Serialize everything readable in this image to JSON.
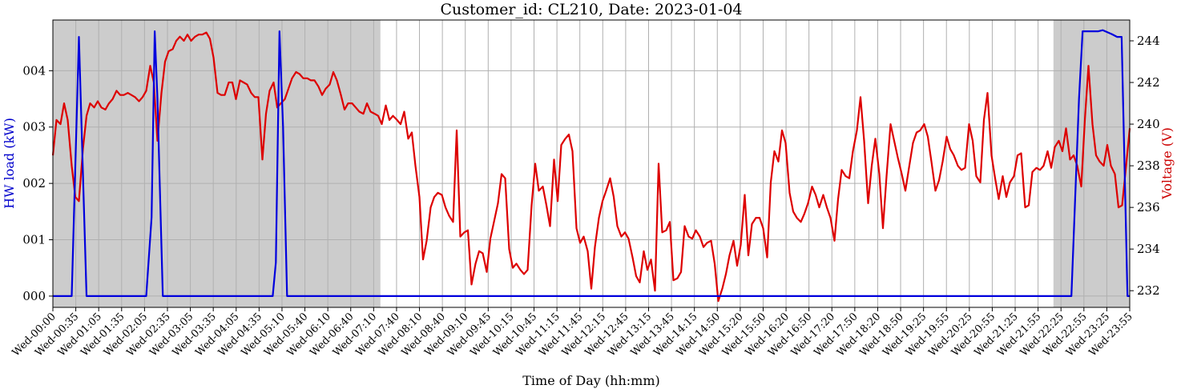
{
  "chart_data": {
    "type": "line",
    "title": "Customer_id: CL210, Date: 2023-01-04",
    "xlabel": "Time of Day (hh:mm)",
    "ylabel_left": "HW load (kW)",
    "ylabel_right": "Voltage (V)",
    "ylim_left": [
      -0.2,
      4.9
    ],
    "ylim_right": [
      231.2,
      245.0
    ],
    "yticks_left": [
      0,
      1,
      2,
      3,
      4
    ],
    "ytick_labels_left": [
      "000",
      "001",
      "002",
      "003",
      "004"
    ],
    "yticks_right": [
      232,
      234,
      236,
      238,
      240,
      242,
      244
    ],
    "x_tick_labels": [
      "Wed-00:00",
      "Wed-00:35",
      "Wed-01:05",
      "Wed-01:35",
      "Wed-02:05",
      "Wed-02:35",
      "Wed-03:05",
      "Wed-03:35",
      "Wed-04:05",
      "Wed-04:35",
      "Wed-05:10",
      "Wed-05:40",
      "Wed-06:10",
      "Wed-06:40",
      "Wed-07:10",
      "Wed-07:40",
      "Wed-08:10",
      "Wed-08:40",
      "Wed-09:10",
      "Wed-09:45",
      "Wed-10:15",
      "Wed-10:45",
      "Wed-11:15",
      "Wed-11:45",
      "Wed-12:15",
      "Wed-12:45",
      "Wed-13:15",
      "Wed-13:45",
      "Wed-14:15",
      "Wed-14:50",
      "Wed-15:20",
      "Wed-15:50",
      "Wed-16:20",
      "Wed-16:50",
      "Wed-17:20",
      "Wed-17:50",
      "Wed-18:20",
      "Wed-18:50",
      "Wed-19:25",
      "Wed-19:55",
      "Wed-20:25",
      "Wed-20:55",
      "Wed-21:25",
      "Wed-21:55",
      "Wed-22:25",
      "Wed-22:55",
      "Wed-23:25",
      "Wed-23:55"
    ],
    "grid": true,
    "shaded_periods_hours": [
      [
        0,
        7.3
      ],
      [
        22.3,
        24.0
      ]
    ],
    "colors": {
      "load": "#0000dd",
      "voltage": "#dd0000",
      "shade": "#cccccc",
      "left_axis_label": "#0000cc",
      "right_axis_label": "#cc0000"
    },
    "load_series": {
      "x_hours": [
        0,
        0.25,
        0.42,
        0.58,
        0.75,
        2.08,
        2.2,
        2.27,
        2.33,
        2.45,
        2.58,
        4.83,
        4.9,
        4.97,
        5.05,
        5.13,
        5.22,
        5.3,
        22.3,
        22.7,
        22.87,
        22.95,
        23.05,
        23.3,
        23.4,
        23.6,
        23.72,
        23.82,
        23.95,
        24.0
      ],
      "values": [
        0,
        0,
        0,
        4.6,
        0,
        0,
        1.4,
        4.7,
        3.5,
        0,
        0,
        0,
        0,
        0.6,
        4.7,
        3.0,
        0,
        0,
        0,
        0,
        3.5,
        4.7,
        4.7,
        4.7,
        4.72,
        4.65,
        4.6,
        4.6,
        0,
        0
      ]
    },
    "voltage_series": {
      "x_hours": [
        0,
        0.08,
        0.17,
        0.25,
        0.33,
        0.42,
        0.5,
        0.58,
        0.67,
        0.75,
        0.83,
        0.92,
        1.0,
        1.08,
        1.17,
        1.25,
        1.33,
        1.42,
        1.5,
        1.58,
        1.67,
        1.75,
        1.83,
        1.92,
        2.0,
        2.08,
        2.17,
        2.25,
        2.33,
        2.42,
        2.5,
        2.58,
        2.67,
        2.75,
        2.83,
        2.92,
        3.0,
        3.08,
        3.17,
        3.25,
        3.33,
        3.42,
        3.5,
        3.58,
        3.67,
        3.75,
        3.83,
        3.92,
        4.0,
        4.08,
        4.17,
        4.25,
        4.33,
        4.42,
        4.5,
        4.58,
        4.67,
        4.75,
        4.83,
        4.92,
        5.0,
        5.08,
        5.17,
        5.25,
        5.33,
        5.42,
        5.5,
        5.58,
        5.67,
        5.75,
        5.83,
        5.92,
        6.0,
        6.08,
        6.17,
        6.25,
        6.33,
        6.42,
        6.5,
        6.58,
        6.67,
        6.75,
        6.83,
        6.92,
        7.0,
        7.08,
        7.17,
        7.25,
        7.33,
        7.42,
        7.5,
        7.58,
        7.67,
        7.75,
        7.83,
        7.92,
        8.0,
        8.08,
        8.17,
        8.25,
        8.33,
        8.42,
        8.5,
        8.58,
        8.67,
        8.75,
        8.83,
        8.92,
        9.0,
        9.08,
        9.17,
        9.25,
        9.33,
        9.42,
        9.5,
        9.58,
        9.67,
        9.75,
        9.83,
        9.92,
        10.0,
        10.08,
        10.17,
        10.25,
        10.33,
        10.42,
        10.5,
        10.58,
        10.67,
        10.75,
        10.83,
        10.92,
        11.0,
        11.08,
        11.17,
        11.25,
        11.33,
        11.42,
        11.5,
        11.58,
        11.67,
        11.75,
        11.83,
        11.92,
        12.0,
        12.08,
        12.17,
        12.25,
        12.33,
        12.42,
        12.5,
        12.58,
        12.67,
        12.75,
        12.83,
        12.92,
        13.0,
        13.08,
        13.17,
        13.25,
        13.33,
        13.42,
        13.5,
        13.58,
        13.67,
        13.75,
        13.83,
        13.92,
        14.0,
        14.08,
        14.17,
        14.25,
        14.33,
        14.42,
        14.5,
        14.58,
        14.67,
        14.75,
        14.83,
        14.92,
        15.0,
        15.08,
        15.17,
        15.25,
        15.33,
        15.42,
        15.5,
        15.58,
        15.67,
        15.75,
        15.83,
        15.92,
        16.0,
        16.08,
        16.17,
        16.25,
        16.33,
        16.42,
        16.5,
        16.58,
        16.67,
        16.75,
        16.83,
        16.92,
        17.0,
        17.08,
        17.17,
        17.25,
        17.33,
        17.42,
        17.5,
        17.58,
        17.67,
        17.75,
        17.83,
        17.92,
        18.0,
        18.08,
        18.17,
        18.25,
        18.33,
        18.42,
        18.5,
        18.58,
        18.67,
        18.75,
        18.83,
        18.92,
        19.0,
        19.08,
        19.17,
        19.25,
        19.33,
        19.42,
        19.5,
        19.58,
        19.67,
        19.75,
        19.83,
        19.92,
        20.0,
        20.08,
        20.17,
        20.25,
        20.33,
        20.42,
        20.5,
        20.58,
        20.67,
        20.75,
        20.83,
        20.92,
        21.0,
        21.08,
        21.17,
        21.25,
        21.33,
        21.42,
        21.5,
        21.58,
        21.67,
        21.75,
        21.83,
        21.92,
        22.0,
        22.08,
        22.17,
        22.25,
        22.33,
        22.42,
        22.5,
        22.58,
        22.67,
        22.75,
        22.83,
        22.92,
        23.0,
        23.08,
        23.17,
        23.25,
        23.33,
        23.42,
        23.5,
        23.58,
        23.67,
        23.75,
        23.83,
        23.92,
        24.0
      ],
      "values": [
        238.5,
        240.2,
        240.0,
        241.0,
        240.2,
        238.0,
        236.5,
        236.3,
        238.8,
        240.4,
        241.0,
        240.8,
        241.1,
        240.8,
        240.7,
        241.0,
        241.2,
        241.6,
        241.4,
        241.4,
        241.5,
        241.4,
        241.3,
        241.1,
        241.3,
        241.6,
        242.8,
        242.0,
        239.2,
        241.5,
        243.0,
        243.5,
        243.6,
        244.0,
        244.2,
        244.0,
        244.3,
        244.0,
        244.2,
        244.3,
        244.3,
        244.4,
        244.1,
        243.2,
        241.5,
        241.4,
        241.4,
        242.0,
        242.0,
        241.2,
        242.1,
        242.0,
        241.9,
        241.5,
        241.3,
        241.3,
        238.3,
        240.5,
        241.6,
        242.0,
        240.8,
        241.0,
        241.2,
        241.7,
        242.2,
        242.5,
        242.4,
        242.2,
        242.2,
        242.1,
        242.1,
        241.8,
        241.4,
        241.7,
        241.9,
        242.5,
        242.1,
        241.4,
        240.7,
        241.0,
        241.0,
        240.8,
        240.6,
        240.5,
        241.0,
        240.6,
        240.5,
        240.4,
        240.0,
        240.9,
        240.2,
        240.4,
        240.2,
        240.0,
        240.6,
        239.3,
        239.6,
        238.0,
        236.5,
        233.5,
        234.4,
        236.0,
        236.5,
        236.7,
        236.6,
        236.0,
        235.6,
        235.3,
        239.7,
        234.6,
        234.8,
        234.9,
        232.3,
        233.3,
        233.9,
        233.8,
        232.9,
        234.5,
        235.3,
        236.2,
        237.6,
        237.4,
        234.0,
        233.1,
        233.3,
        233.0,
        232.8,
        233.0,
        236.1,
        238.1,
        236.8,
        237.0,
        236.1,
        235.1,
        238.3,
        236.3,
        239.0,
        239.3,
        239.5,
        238.7,
        235.0,
        234.3,
        234.6,
        233.9,
        232.1,
        234.1,
        235.5,
        236.3,
        236.8,
        237.4,
        236.5,
        235.1,
        234.6,
        234.8,
        234.5,
        233.6,
        232.7,
        232.4,
        233.9,
        233.0,
        233.5,
        232.0,
        238.1,
        234.8,
        234.9,
        235.3,
        232.5,
        232.6,
        232.9,
        235.1,
        234.6,
        234.5,
        234.9,
        234.6,
        234.1,
        234.3,
        234.4,
        233.3,
        231.5,
        232.1,
        232.8,
        233.7,
        234.4,
        233.2,
        234.2,
        236.6,
        233.7,
        235.2,
        235.5,
        235.5,
        235.0,
        233.6,
        237.2,
        238.7,
        238.2,
        239.7,
        239.1,
        236.7,
        235.8,
        235.5,
        235.3,
        235.7,
        236.2,
        237.0,
        236.6,
        236.0,
        236.6,
        236.0,
        235.5,
        234.4,
        236.4,
        237.8,
        237.5,
        237.4,
        238.7,
        239.7,
        241.3,
        239.2,
        236.2,
        238.0,
        239.3,
        237.6,
        235.0,
        237.5,
        240.0,
        239.2,
        238.4,
        237.6,
        236.8,
        237.9,
        239.1,
        239.6,
        239.7,
        240.0,
        239.4,
        238.2,
        236.8,
        237.3,
        238.2,
        239.4,
        238.8,
        238.5,
        238.0,
        237.8,
        237.9,
        240.0,
        239.2,
        237.5,
        237.2,
        240.2,
        241.5,
        238.5,
        237.4,
        236.4,
        237.5,
        236.5,
        237.2,
        237.5,
        238.5,
        238.6,
        236.0,
        236.1,
        237.7,
        237.9,
        237.8,
        238.0,
        238.7,
        237.9,
        238.9,
        239.2,
        238.7,
        239.8,
        238.3,
        238.5,
        238.0,
        237.0,
        240.2,
        242.8,
        240.0,
        238.5,
        238.2,
        238.0,
        239.0,
        238.0,
        237.6,
        236.0,
        236.1,
        238.0,
        239.8
      ]
    }
  }
}
